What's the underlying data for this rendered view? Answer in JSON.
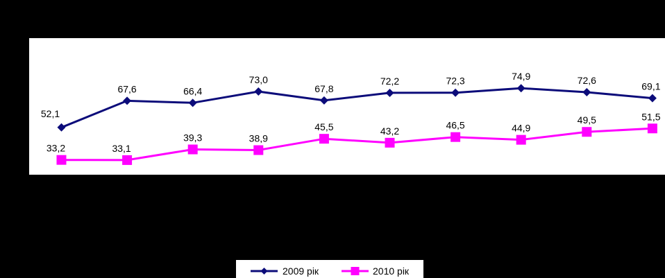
{
  "chart_data": {
    "type": "line",
    "categories": [
      "",
      "",
      "",
      "",
      "",
      "",
      "",
      "",
      "",
      ""
    ],
    "ylim": [
      0,
      100
    ],
    "grid": false,
    "legend_position": "bottom",
    "series": [
      {
        "name": "2009 рік",
        "color": "#0C0C7A",
        "marker": "diamond",
        "values": [
          52.1,
          67.6,
          66.4,
          73.0,
          67.8,
          72.2,
          72.3,
          74.9,
          72.6,
          69.1
        ],
        "labels": [
          "52,1",
          "67,6",
          "66,4",
          "73,0",
          "67,8",
          "72,2",
          "72,3",
          "74,9",
          "72,6",
          "69,1"
        ]
      },
      {
        "name": "2010 рік",
        "color": "#FF00FF",
        "marker": "square",
        "values": [
          33.2,
          33.1,
          39.3,
          38.9,
          45.5,
          43.2,
          46.5,
          44.9,
          49.5,
          51.5
        ],
        "labels": [
          "33,2",
          "33,1",
          "39,3",
          "38,9",
          "45,5",
          "43,2",
          "46,5",
          "44,9",
          "49,5",
          "51,5"
        ]
      }
    ]
  },
  "legend": {
    "items": [
      {
        "label": "2009 рік"
      },
      {
        "label": "2010 рік"
      }
    ]
  }
}
